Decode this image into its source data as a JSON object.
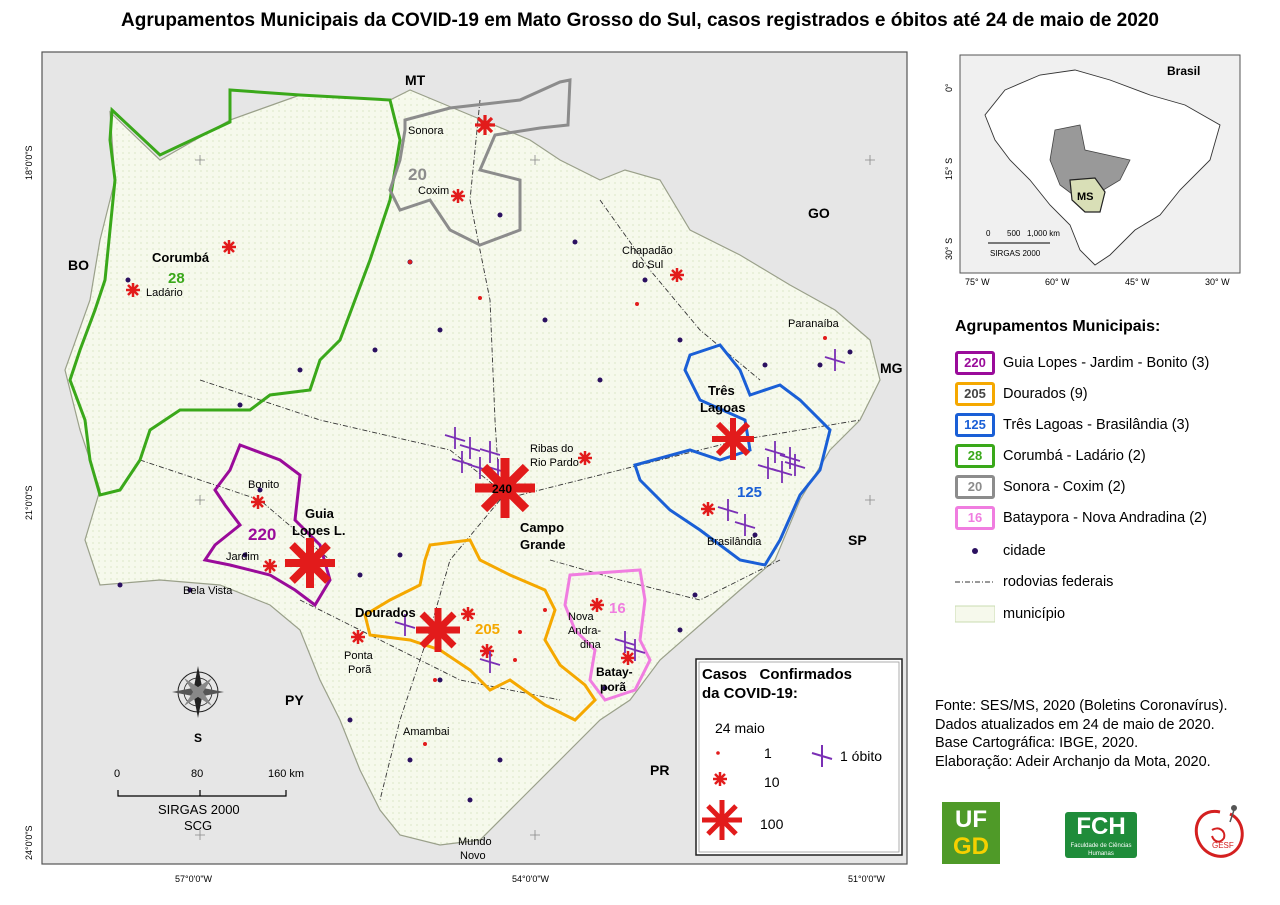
{
  "title": "Agrupamentos Municipais da COVID-19 em Mato Grosso do Sul, casos registrados e óbitos até 24 de maio de 2020",
  "map": {
    "neighbors": {
      "mt": "MT",
      "go": "GO",
      "mg": "MG",
      "sp": "SP",
      "pr": "PR",
      "py": "PY",
      "bo": "BO"
    },
    "lat_ticks": [
      "18°0'0\"S",
      "21°0'0\"S",
      "24°0'0\"S"
    ],
    "lon_ticks": [
      "57°0'0\"W",
      "54°0'0\"W",
      "51°0'0\"W"
    ],
    "cities": {
      "corumba": "Corumbá",
      "ladario": "Ladário",
      "sonora": "Sonora",
      "coxim": "Coxim",
      "chapadao": "Chapadão",
      "do_sul": "do Sul",
      "paranaiba": "Paranaíba",
      "tres": "Três",
      "lagoas": "Lagoas",
      "ribas1": "Ribas do",
      "ribas2": "Rio Pardo",
      "campo": "Campo",
      "grande": "Grande",
      "bonito": "Bonito",
      "guia": "Guia",
      "lopes": "Lopes L.",
      "jardim": "Jardim",
      "bela_vista": "Bela Vista",
      "dourados": "Dourados",
      "ponta": "Ponta",
      "pora": "Porã",
      "nova": "Nova",
      "andra": "Andra-",
      "dina": "dina",
      "bata": "Batay-",
      "pora2": "porã",
      "brasilandia": "Brasilândia",
      "amambai": "Amambai",
      "mundo": "Mundo",
      "novo": "Novo"
    },
    "cluster_labels": {
      "c28": "28",
      "c20": "20",
      "c125": "125",
      "c220": "220",
      "c205": "205",
      "c16": "16",
      "c240": "240"
    },
    "north_letter": "S",
    "scalebar": {
      "t0": "0",
      "t80": "80",
      "t160": "160 km",
      "l1": "SIRGAS 2000",
      "l2": "SCG"
    }
  },
  "cases_legend": {
    "title1": "Casos   Confirmados",
    "title2": "da COVID-19:",
    "date": "24 maio",
    "v1": "1",
    "v10": "10",
    "v100": "100",
    "death": "1 óbito"
  },
  "inset": {
    "label": "Brasil",
    "ms": "MS",
    "lat": [
      "0°",
      "15° S",
      "30° S"
    ],
    "lon": [
      "75° W",
      "60° W",
      "45° W",
      "30° W"
    ],
    "scale_ticks": [
      "0",
      "500",
      "1,000 km"
    ],
    "scale_label": "SIRGAS 2000"
  },
  "legend": {
    "title": "Agrupamentos Municipais:",
    "items": [
      {
        "code": "220",
        "label": "Guia Lopes - Jardim - Bonito (3)",
        "color": "#9a0b9a"
      },
      {
        "code": "205",
        "label": "Dourados (9)",
        "color": "#f5a800"
      },
      {
        "code": "125",
        "label": "Três Lagoas - Brasilândia (3)",
        "color": "#1a5fd6"
      },
      {
        "code": "28",
        "label": "Corumbá - Ladário (2)",
        "color": "#3aa81a"
      },
      {
        "code": "20",
        "label": "Sonora - Coxim (2)",
        "color": "#8c8c8c"
      },
      {
        "code": "16",
        "label": "Bataypora - Nova Andradina (2)",
        "color": "#f07de0"
      }
    ],
    "cidade": "cidade",
    "rodovias": "rodovias federais",
    "municipio": "município"
  },
  "credits": [
    "Fonte: SES/MS, 2020 (Boletins Coronavírus).",
    "Dados atualizados em 24 de maio de 2020.",
    "Base Cartográfica: IBGE, 2020.",
    "Elaboração: Adeir Archanjo da Mota, 2020."
  ],
  "logos": {
    "ufgd1": "UF",
    "ufgd2": "GD",
    "fch": "FCH",
    "fch_sub": "Faculdade de Ciências Humanas",
    "gesf": "GESF"
  },
  "colors": {
    "red": "#e21b1b",
    "purple_death": "#7a2fb5",
    "map_bg": "#e6e6e6",
    "ms_fill": "#f7f9ee"
  }
}
